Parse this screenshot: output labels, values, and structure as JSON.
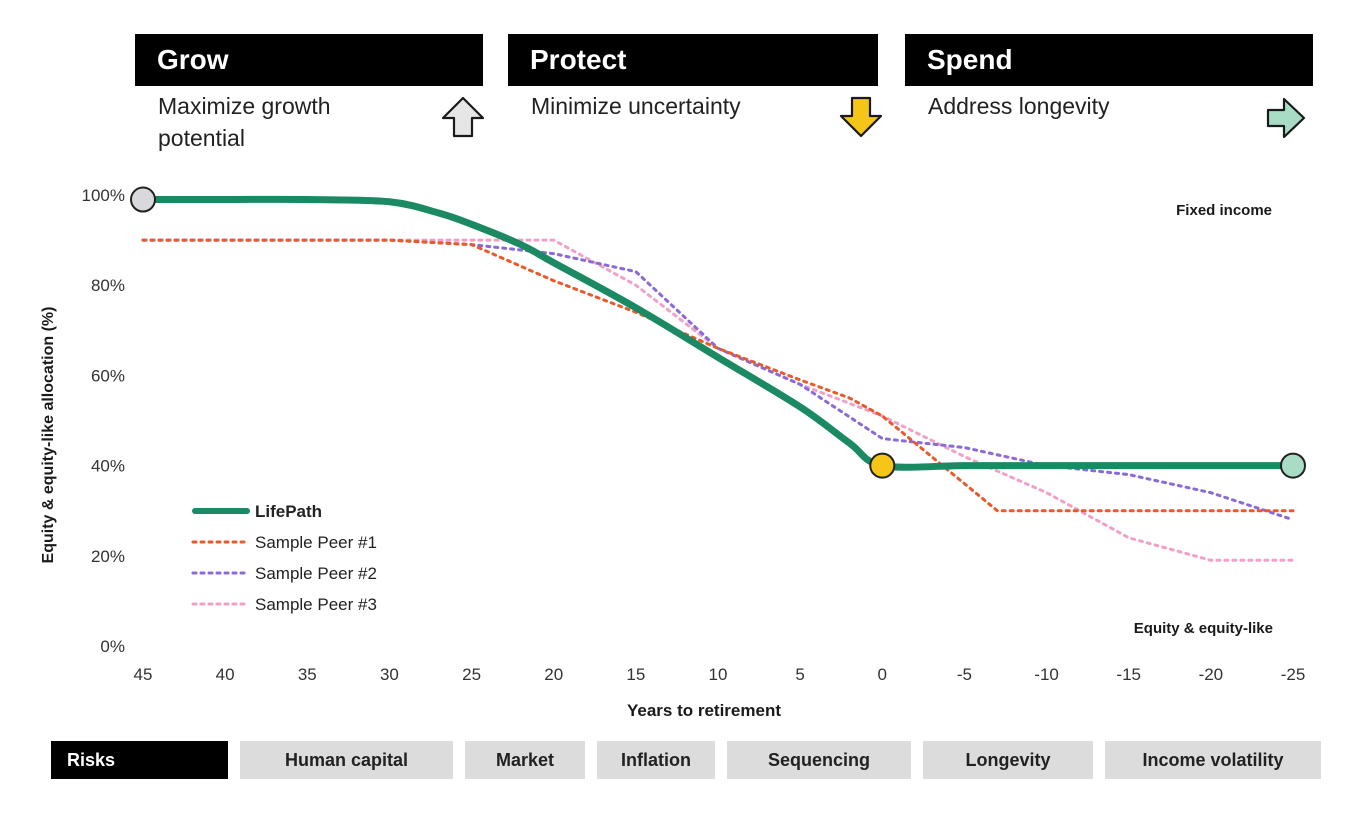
{
  "phases": [
    {
      "name": "Grow",
      "description": "Maximize growth potential",
      "icon": "up-arrow-icon"
    },
    {
      "name": "Protect",
      "description": "Minimize uncertainty",
      "icon": "down-arrow-icon"
    },
    {
      "name": "Spend",
      "description": "Address longevity",
      "icon": "right-arrow-icon"
    }
  ],
  "colors": {
    "lifepath": "#1b8a63",
    "peer1": "#e85a2a",
    "peer2": "#8a6ad6",
    "peer3": "#f2a0c8",
    "grow_icon": "#e6e6e6",
    "protect_icon": "#f5c518",
    "spend_icon": "#a8dcc4"
  },
  "chart_data": {
    "type": "line",
    "xlabel": "Years to retirement",
    "ylabel": "Equity & equity-like allocation (%)",
    "x_ticks": [
      45,
      40,
      35,
      30,
      25,
      20,
      15,
      10,
      5,
      0,
      -5,
      -10,
      -15,
      -20,
      -25
    ],
    "x_tick_labels": [
      "45",
      "40",
      "35",
      "30",
      "25",
      "20",
      "15",
      "10",
      "5",
      "0",
      "-5",
      "-10",
      "-15",
      "-20",
      "-25"
    ],
    "y_ticks": [
      0,
      20,
      40,
      60,
      80,
      100
    ],
    "y_tick_labels": [
      "0%",
      "20%",
      "40%",
      "60%",
      "80%",
      "100%"
    ],
    "xlim": [
      45,
      -25
    ],
    "ylim": [
      0,
      100
    ],
    "annotations": {
      "top": "Fixed income",
      "bottom": "Equity & equity-like"
    },
    "series": [
      {
        "name": "LifePath",
        "style": "solid",
        "x": [
          45,
          40,
          35,
          30,
          27,
          25,
          22,
          20,
          15,
          10,
          5,
          2,
          0,
          -5,
          -10,
          -15,
          -20,
          -25
        ],
        "y": [
          99,
          99,
          99,
          98.5,
          96,
          93.5,
          89,
          85,
          75,
          64,
          53,
          45,
          40,
          40,
          40,
          40,
          40,
          40
        ]
      },
      {
        "name": "Sample Peer #1",
        "style": "dotted",
        "x": [
          45,
          30,
          25,
          20,
          15,
          10,
          5,
          2,
          0,
          -3,
          -7,
          -10,
          -15,
          -20,
          -25
        ],
        "y": [
          90,
          90,
          89,
          81,
          74,
          66,
          59,
          55,
          51,
          42,
          30,
          30,
          30,
          30,
          30
        ]
      },
      {
        "name": "Sample Peer #2",
        "style": "dotted",
        "x": [
          45,
          30,
          25,
          20,
          15,
          10,
          5,
          0,
          -5,
          -10,
          -15,
          -20,
          -25
        ],
        "y": [
          90,
          90,
          89,
          87,
          83,
          66,
          58,
          46,
          44,
          40,
          38,
          34,
          28
        ]
      },
      {
        "name": "Sample Peer #3",
        "style": "dotted",
        "x": [
          45,
          30,
          25,
          20,
          15,
          10,
          5,
          0,
          -5,
          -10,
          -15,
          -20,
          -25
        ],
        "y": [
          90,
          90,
          90,
          90,
          80,
          66,
          58,
          51,
          42,
          34,
          24,
          19,
          19
        ]
      }
    ],
    "markers": [
      {
        "x": 45,
        "y": 99,
        "color": "#d9d9dd"
      },
      {
        "x": 0,
        "y": 40,
        "color": "#f5c518"
      },
      {
        "x": -25,
        "y": 40,
        "color": "#a8dcc4"
      }
    ]
  },
  "risks": {
    "label": "Risks",
    "items": [
      "Human capital",
      "Market",
      "Inflation",
      "Sequencing",
      "Longevity",
      "Income volatility"
    ]
  }
}
